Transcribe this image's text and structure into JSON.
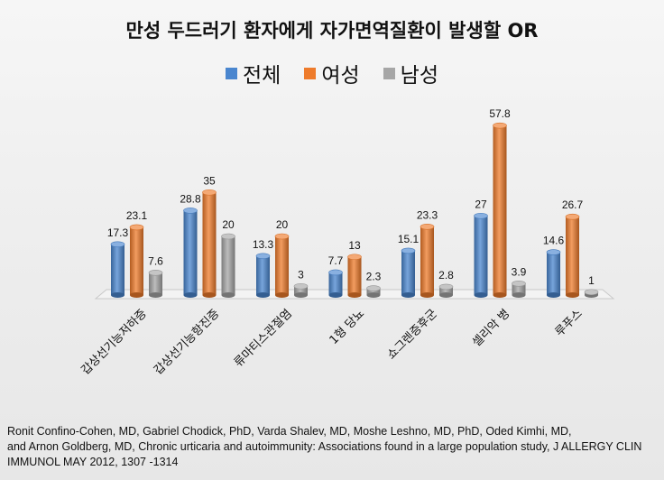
{
  "chart_data": {
    "type": "bar",
    "title": "만성 두드러기 환자에게 자가면역질환이 발생할 OR",
    "categories": [
      "갑상선기능저하증",
      "갑상선기능항진증",
      "류마티스관절염",
      "1형 당뇨",
      "쇼그렌증후군",
      "셀리악 병",
      "루푸스"
    ],
    "series": [
      {
        "name": "전체",
        "values": [
          17.3,
          28.8,
          13.3,
          7.7,
          15.1,
          27,
          14.6
        ]
      },
      {
        "name": "여성",
        "values": [
          23.1,
          35,
          20,
          13,
          23.3,
          57.8,
          26.7
        ]
      },
      {
        "name": "남성",
        "values": [
          7.6,
          20,
          3,
          2.3,
          2.8,
          3.9,
          1
        ]
      }
    ],
    "colors": [
      "#4a86cf",
      "#ee7b2b",
      "#a6a6a6"
    ],
    "ylim": [
      0,
      60
    ],
    "grid": false,
    "legend_position": "top"
  },
  "citation": {
    "line1": "Ronit Confino-Cohen,  MD, Gabriel Chodick, PhD, Varda Shalev, MD, Moshe Leshno, MD, PhD, Oded Kimhi, MD,",
    "line2": "and Arnon Goldberg, MD, Chronic urticaria and autoimmunity: Associations  found  in a large population  study, J ALLERGY CLIN",
    "line3": "IMMUNOL MAY 2012, 1307 -1314"
  }
}
